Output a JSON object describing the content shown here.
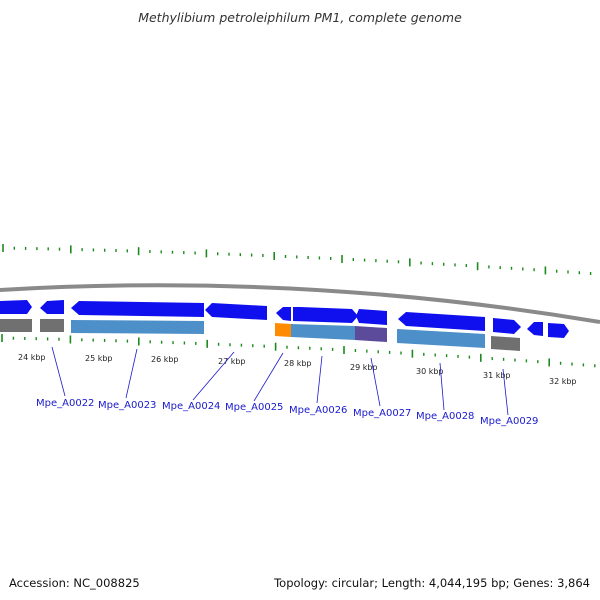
{
  "title": "Methylibium petroleiphilum PM1, complete genome",
  "accession": "Accession: NC_008825",
  "stats": "Topology: circular; Length: 4,044,195 bp; Genes: 3,864",
  "kbp_labels": [
    "24 kbp",
    "25 kbp",
    "26 kbp",
    "27 kbp",
    "28 kbp",
    "29 kbp",
    "30 kbp",
    "31 kbp",
    "32 kbp"
  ],
  "gene_labels": [
    "Mpe_A0022",
    "Mpe_A0023",
    "Mpe_A0024",
    "Mpe_A0025",
    "Mpe_A0026",
    "Mpe_A0027",
    "Mpe_A0028",
    "Mpe_A0029"
  ],
  "colors": {
    "gene": "#1010ee",
    "cds_blue": "#4d8fc8",
    "cds_gray": "#707070",
    "cds_orange": "#ff8c00",
    "cds_purple": "#5c4a9a",
    "tick": "#1c8a1c",
    "backbone": "#8a8a8a",
    "label": "#1a1acc"
  }
}
